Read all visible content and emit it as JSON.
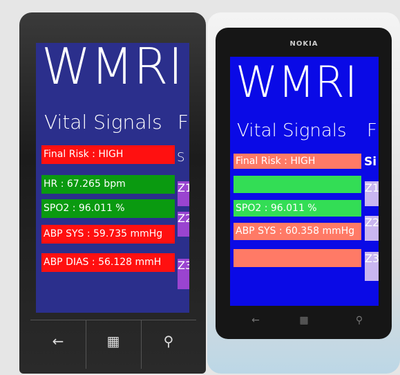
{
  "left_phone": {
    "app_title": "WMRI",
    "section": "Vital Signals",
    "next_section": "F",
    "side_header": "S",
    "rows": [
      "Final Risk : HIGH",
      "HR : 67.265 bpm",
      "SPO2 : 96.011 %",
      "ABP SYS : 59.735 mmHg",
      "ABP DIAS : 56.128 mmH"
    ],
    "zones": [
      "Z1",
      "Z2",
      "Z3"
    ]
  },
  "right_phone": {
    "brand": "NOKIA",
    "app_title": "WMRI",
    "section": "Vital Signals",
    "next_section": "F",
    "side_header": "Si",
    "rows": [
      "Final Risk : HIGH",
      "SPO2 : 96.011 %",
      "ABP SYS : 60.358 mmHg"
    ],
    "zones": [
      "Z1",
      "Z2",
      "Z3"
    ]
  }
}
